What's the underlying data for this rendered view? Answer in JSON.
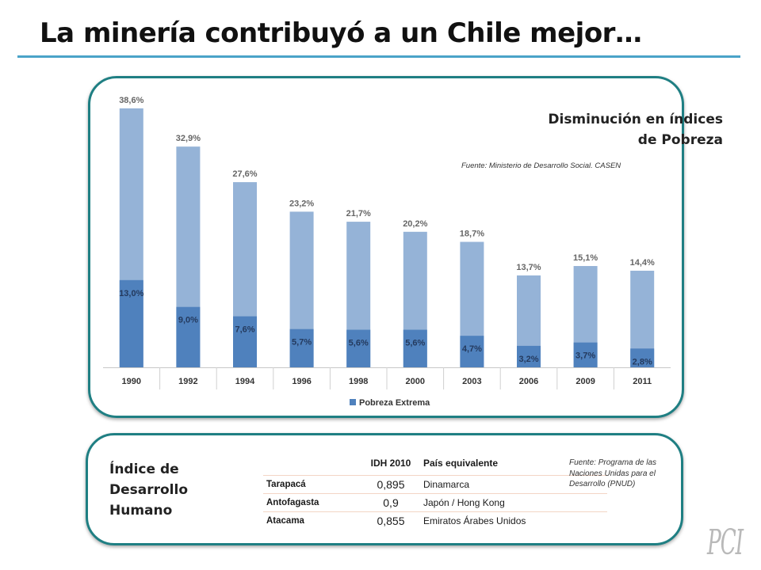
{
  "page": {
    "title": "La minería contribuyó a un Chile mejor…"
  },
  "chart_title": {
    "line1": "Disminución en índices",
    "line2": "de Pobreza",
    "source": "Fuente: Ministerio de Desarrollo Social. CASEN"
  },
  "chart_data": {
    "type": "bar",
    "categories": [
      "1990",
      "1992",
      "1994",
      "1996",
      "1998",
      "2000",
      "2003",
      "2006",
      "2009",
      "2011"
    ],
    "series": [
      {
        "name": "Pobreza Extrema",
        "values": [
          13.0,
          9.0,
          7.6,
          5.7,
          5.6,
          5.6,
          4.7,
          3.2,
          3.7,
          2.8
        ],
        "labels": [
          "13,0%",
          "9,0%",
          "7,6%",
          "5,7%",
          "5,6%",
          "5,6%",
          "4,7%",
          "3,2%",
          "3,7%",
          "2,8%"
        ],
        "color": "#4f81bd"
      },
      {
        "name": "",
        "values": [
          38.6,
          32.9,
          27.6,
          23.2,
          21.7,
          20.2,
          18.7,
          13.7,
          15.1,
          14.4
        ],
        "labels": [
          "38,6%",
          "32,9%",
          "27,6%",
          "23,2%",
          "21,7%",
          "20,2%",
          "18,7%",
          "13,7%",
          "15,1%",
          "14,4%"
        ],
        "color": "#95b3d7"
      }
    ],
    "ylim": [
      0,
      40
    ],
    "grid": false,
    "legend": "bottom-center",
    "overlap": true
  },
  "idh": {
    "heading": [
      "Índice de",
      "Desarrollo",
      "Humano"
    ],
    "columns": [
      "",
      "IDH 2010",
      "País equivalente"
    ],
    "rows": [
      {
        "region": "Tarapacá",
        "idh": "0,895",
        "pais": "Dinamarca"
      },
      {
        "region": "Antofagasta",
        "idh": "0,9",
        "pais": "Japón / Hong Kong"
      },
      {
        "region": "Atacama",
        "idh": "0,855",
        "pais": "Emiratos Árabes Unidos"
      }
    ],
    "source": "Fuente: Programa de las Naciones Unidas para el Desarrollo (PNUD)"
  },
  "logo": {
    "text": "PCI"
  }
}
